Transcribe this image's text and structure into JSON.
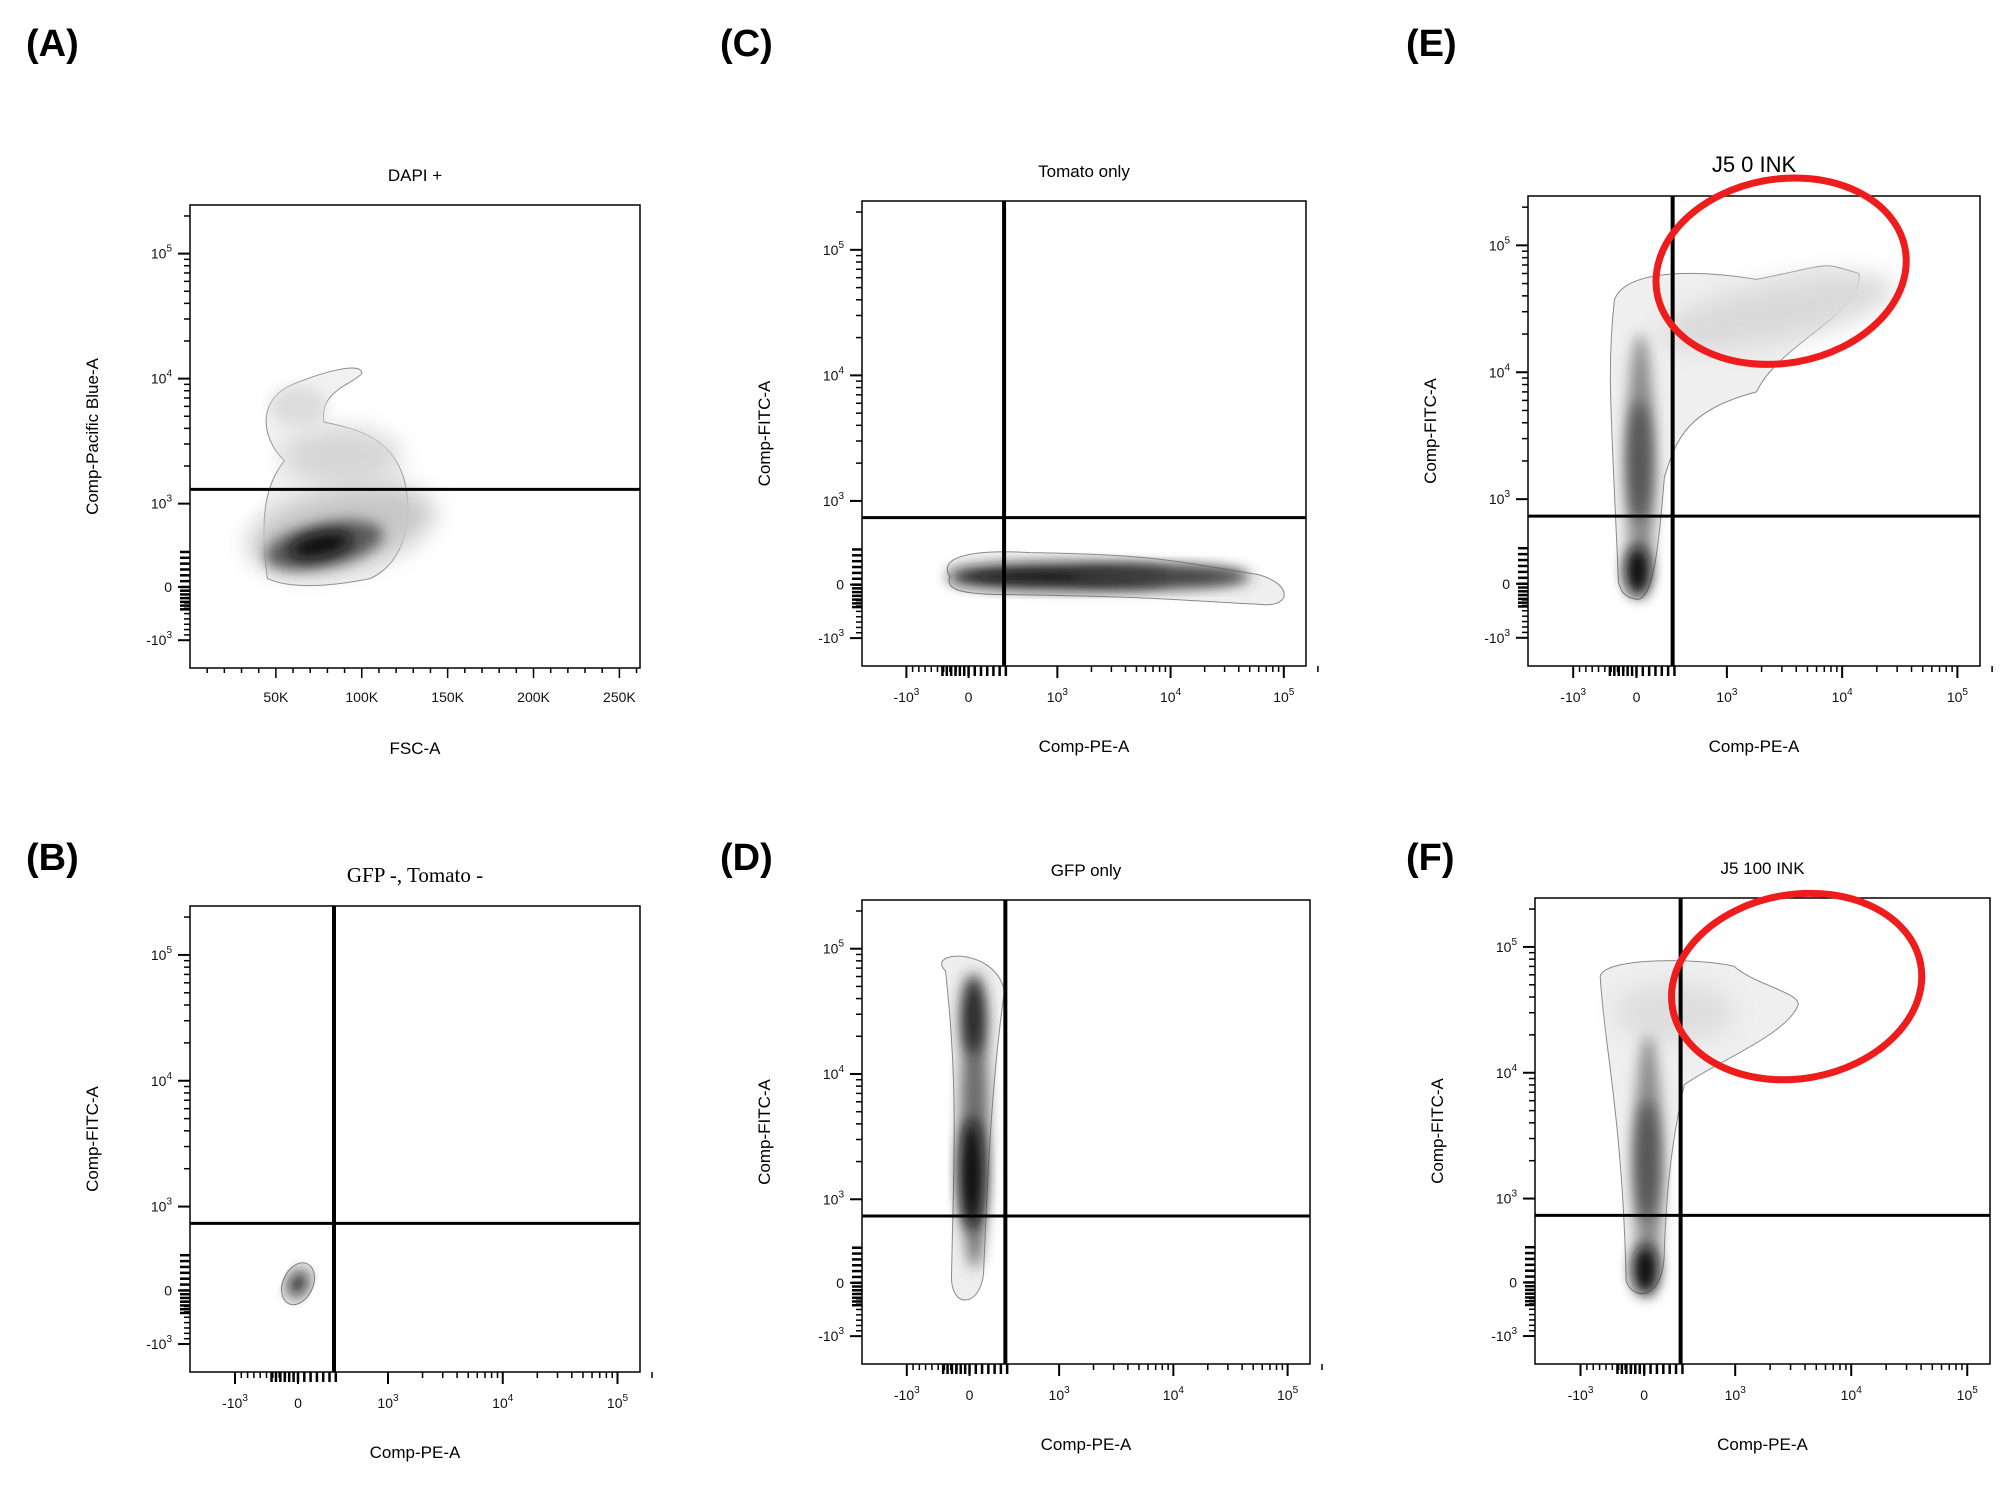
{
  "figure": {
    "panel_labels": [
      "(A)",
      "(B)",
      "(C)",
      "(D)",
      "(E)",
      "(F)"
    ]
  },
  "chart_data": [
    {
      "panel": "(A)",
      "type": "heatmap",
      "title": "DAPI +",
      "xlabel": "FSC-A",
      "ylabel": "Comp-Pacific Blue-A",
      "x_scale": "linear",
      "y_scale": "biexponential",
      "x_ticks": [
        "50K",
        "100K",
        "150K",
        "200K",
        "250K"
      ],
      "y_ticks": [
        "10^5",
        "10^4",
        "10^3",
        "0",
        "-10^3"
      ],
      "gates": {
        "horizontal_threshold": 1300
      },
      "density_peaks": [
        {
          "x": 78000,
          "y": 500,
          "intensity": 1.0
        }
      ]
    },
    {
      "panel": "(B)",
      "type": "heatmap",
      "title": "GFP -, Tomato -",
      "xlabel": "Comp-PE-A",
      "ylabel": "Comp-FITC-A",
      "x_scale": "biexponential",
      "y_scale": "biexponential",
      "x_ticks": [
        "-10^3",
        "0",
        "10^3",
        "10^4",
        "10^5"
      ],
      "y_ticks": [
        "10^5",
        "10^4",
        "10^3",
        "0",
        "-10^3"
      ],
      "gates": {
        "vertical_threshold": 400,
        "horizontal_threshold": 800
      },
      "density_peaks": [
        {
          "x": 0,
          "y": 50,
          "intensity": 1.0
        }
      ]
    },
    {
      "panel": "(C)",
      "type": "heatmap",
      "title": "Tomato only",
      "xlabel": "Comp-PE-A",
      "ylabel": "Comp-FITC-A",
      "x_scale": "biexponential",
      "y_scale": "biexponential",
      "x_ticks": [
        "-10^3",
        "0",
        "10^3",
        "10^4",
        "10^5"
      ],
      "y_ticks": [
        "10^5",
        "10^4",
        "10^3",
        "0",
        "-10^3"
      ],
      "gates": {
        "vertical_threshold": 400,
        "horizontal_threshold": 800
      },
      "density_peaks": [
        {
          "x": 1000,
          "y": 0,
          "intensity": 1.0
        }
      ]
    },
    {
      "panel": "(D)",
      "type": "heatmap",
      "title": "GFP only",
      "xlabel": "Comp-PE-A",
      "ylabel": "Comp-FITC-A",
      "x_scale": "biexponential",
      "y_scale": "biexponential",
      "x_ticks": [
        "-10^3",
        "0",
        "10^3",
        "10^4",
        "10^5"
      ],
      "y_ticks": [
        "10^5",
        "10^4",
        "10^3",
        "0",
        "-10^3"
      ],
      "gates": {
        "vertical_threshold": 400,
        "horizontal_threshold": 800
      },
      "density_peaks": [
        {
          "x": 0,
          "y": 30000,
          "intensity": 0.8
        },
        {
          "x": 0,
          "y": 1500,
          "intensity": 1.0
        }
      ]
    },
    {
      "panel": "(E)",
      "type": "heatmap",
      "title": "J5 0 INK",
      "xlabel": "Comp-PE-A",
      "ylabel": "Comp-FITC-A",
      "x_scale": "biexponential",
      "y_scale": "biexponential",
      "x_ticks": [
        "-10^3",
        "0",
        "10^3",
        "10^4",
        "10^5"
      ],
      "y_ticks": [
        "10^5",
        "10^4",
        "10^3",
        "0",
        "-10^3"
      ],
      "gates": {
        "vertical_threshold": 400,
        "horizontal_threshold": 800
      },
      "highlight": {
        "shape": "ellipse",
        "color": "#ee1c1c"
      },
      "density_peaks": [
        {
          "x": 0,
          "y": 200,
          "intensity": 1.0
        }
      ]
    },
    {
      "panel": "(F)",
      "type": "heatmap",
      "title": "J5 100 INK",
      "xlabel": "Comp-PE-A",
      "ylabel": "Comp-FITC-A",
      "x_scale": "biexponential",
      "y_scale": "biexponential",
      "x_ticks": [
        "-10^3",
        "0",
        "10^3",
        "10^4",
        "10^5"
      ],
      "y_ticks": [
        "10^5",
        "10^4",
        "10^3",
        "0",
        "-10^3"
      ],
      "gates": {
        "vertical_threshold": 400,
        "horizontal_threshold": 800
      },
      "highlight": {
        "shape": "ellipse",
        "color": "#ee1c1c"
      },
      "density_peaks": [
        {
          "x": 0,
          "y": 200,
          "intensity": 1.0
        }
      ]
    }
  ]
}
